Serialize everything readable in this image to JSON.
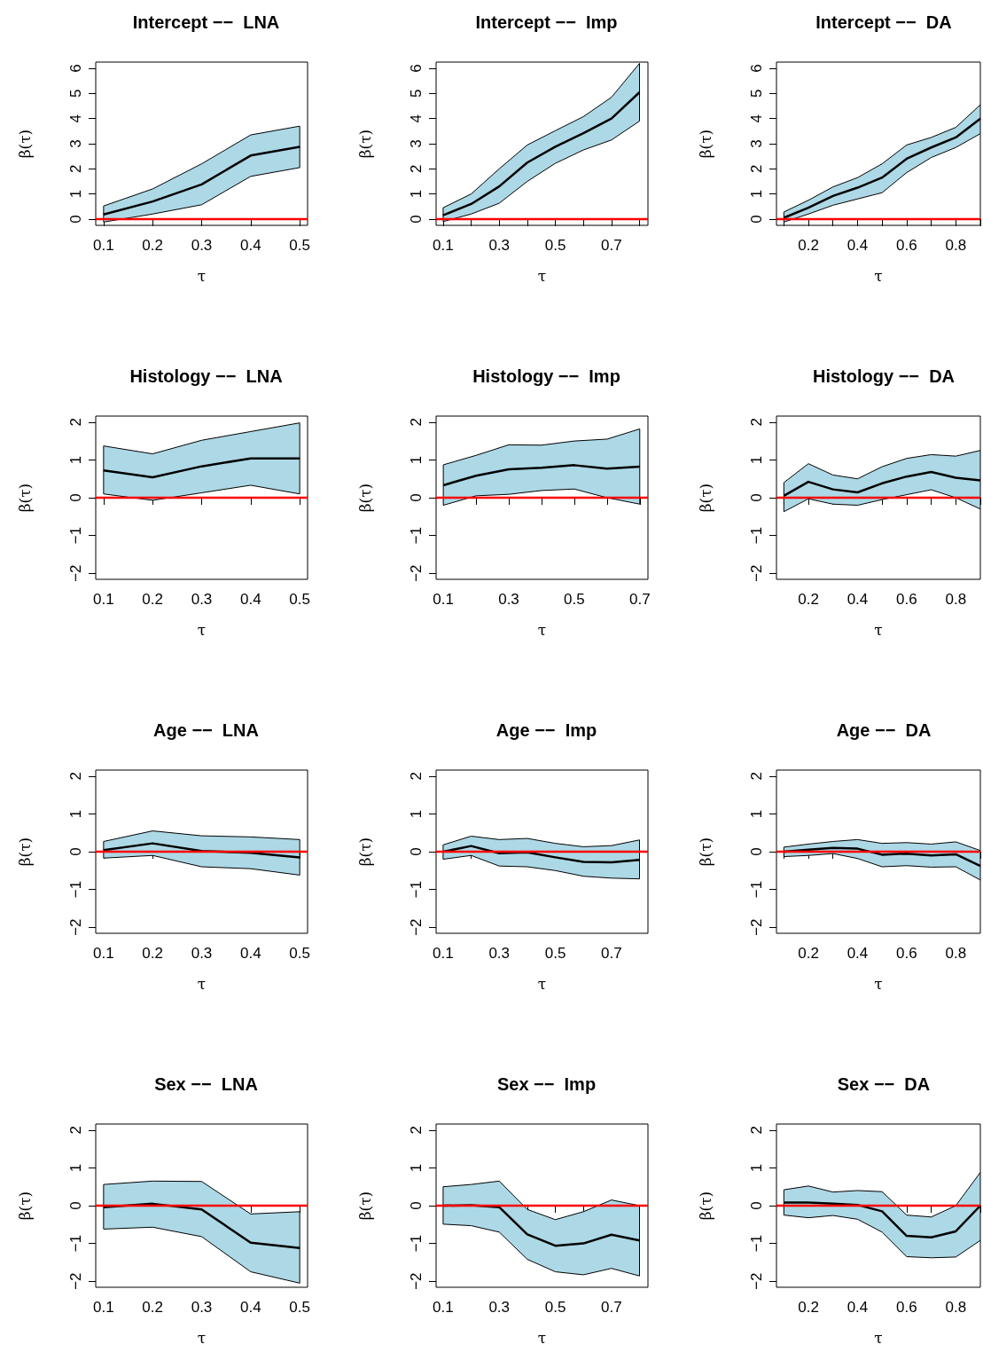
{
  "chart_data": [
    {
      "type": "line",
      "title": "Intercept −−  LNA",
      "xlabel": "τ",
      "ylabel": "β(τ)",
      "x": [
        0.1,
        0.2,
        0.3,
        0.4,
        0.5
      ],
      "xlim": [
        0.084,
        0.516
      ],
      "xticks": [
        0.1,
        0.2,
        0.3,
        0.4,
        0.5
      ],
      "ylim": [
        -0.25,
        6.25
      ],
      "yticks": [
        0,
        1,
        2,
        3,
        4,
        5,
        6
      ],
      "marker": "none",
      "series": [
        {
          "color": "#000000",
          "values": [
            0.18,
            0.7,
            1.38,
            2.53,
            2.88
          ],
          "lower": [
            -0.12,
            0.2,
            0.57,
            1.7,
            2.05
          ],
          "upper": [
            0.52,
            1.2,
            2.2,
            3.35,
            3.7
          ]
        }
      ],
      "ref_lines": [
        {
          "axis": "y",
          "value": 0,
          "color": "#ff0000"
        }
      ]
    },
    {
      "type": "line",
      "title": "Intercept −−  Imp",
      "xlabel": "τ",
      "ylabel": "β(τ)",
      "x": [
        0.1,
        0.2,
        0.3,
        0.4,
        0.5,
        0.6,
        0.7,
        0.8
      ],
      "xlim": [
        0.075,
        0.83
      ],
      "xticks": [
        0.1,
        {
          "value": 0.2,
          "label": null
        },
        0.3,
        {
          "value": 0.4,
          "label": null
        },
        0.5,
        {
          "value": 0.6,
          "label": null
        },
        0.7,
        {
          "value": 0.8,
          "label": null
        }
      ],
      "ylim": [
        -0.25,
        6.25
      ],
      "yticks": [
        0,
        1,
        2,
        3,
        4,
        5,
        6
      ],
      "marker": "none",
      "series": [
        {
          "color": "#000000",
          "values": [
            0.15,
            0.6,
            1.3,
            2.25,
            2.88,
            3.42,
            4.0,
            5.05
          ],
          "lower": [
            -0.1,
            0.2,
            0.63,
            1.5,
            2.22,
            2.75,
            3.15,
            3.9
          ],
          "upper": [
            0.45,
            1.0,
            2.0,
            2.95,
            3.52,
            4.08,
            4.85,
            6.2
          ]
        }
      ],
      "ref_lines": [
        {
          "axis": "y",
          "value": 0,
          "color": "#ff0000"
        }
      ]
    },
    {
      "type": "line",
      "title": "Intercept −−  DA",
      "xlabel": "τ",
      "ylabel": "β(τ)",
      "x": [
        0.1,
        0.2,
        0.3,
        0.4,
        0.5,
        0.6,
        0.7,
        0.8,
        0.9
      ],
      "xlim": [
        0.07,
        0.9
      ],
      "xticks": [
        {
          "value": 0.1,
          "label": null
        },
        0.2,
        {
          "value": 0.3,
          "label": null
        },
        0.4,
        {
          "value": 0.5,
          "label": null
        },
        0.6,
        {
          "value": 0.7,
          "label": null
        },
        0.8,
        {
          "value": 0.9,
          "label": null
        }
      ],
      "ylim": [
        -0.25,
        6.25
      ],
      "yticks": [
        0,
        1,
        2,
        3,
        4,
        5,
        6
      ],
      "marker": "none",
      "series": [
        {
          "color": "#000000",
          "values": [
            0.05,
            0.45,
            0.92,
            1.25,
            1.65,
            2.4,
            2.85,
            3.25,
            4.0
          ],
          "lower": [
            -0.12,
            0.2,
            0.55,
            0.8,
            1.05,
            1.85,
            2.45,
            2.85,
            3.4
          ],
          "upper": [
            0.28,
            0.75,
            1.28,
            1.65,
            2.2,
            2.95,
            3.25,
            3.65,
            4.55
          ]
        }
      ],
      "ref_lines": [
        {
          "axis": "y",
          "value": 0,
          "color": "#ff0000"
        }
      ]
    },
    {
      "type": "line",
      "title": "Histology −−  LNA",
      "xlabel": "τ",
      "ylabel": "β(τ)",
      "x": [
        0.1,
        0.2,
        0.3,
        0.4,
        0.5
      ],
      "xlim": [
        0.084,
        0.516
      ],
      "xticks": [
        0.1,
        0.2,
        0.3,
        0.4,
        0.5
      ],
      "ylim": [
        -2.16,
        2.16
      ],
      "yticks": [
        -2,
        -1,
        0,
        1,
        2
      ],
      "marker": "none",
      "series": [
        {
          "color": "#000000",
          "values": [
            0.72,
            0.54,
            0.83,
            1.04,
            1.04
          ],
          "lower": [
            0.1,
            -0.07,
            0.13,
            0.33,
            0.1
          ],
          "upper": [
            1.37,
            1.16,
            1.52,
            1.75,
            1.98
          ]
        }
      ],
      "ref_lines": [
        {
          "axis": "y",
          "value": 0,
          "color": "#ff0000"
        }
      ]
    },
    {
      "type": "line",
      "title": "Histology −−  Imp",
      "xlabel": "τ",
      "ylabel": "β(τ)",
      "x": [
        0.1,
        0.2,
        0.3,
        0.4,
        0.5,
        0.6,
        0.7
      ],
      "xlim": [
        0.078,
        0.725
      ],
      "xticks": [
        0.1,
        {
          "value": 0.2,
          "label": null
        },
        0.3,
        {
          "value": 0.4,
          "label": null
        },
        0.5,
        {
          "value": 0.6,
          "label": null
        },
        0.7
      ],
      "ylim": [
        -2.16,
        2.16
      ],
      "yticks": [
        -2,
        -1,
        0,
        1,
        2
      ],
      "marker": "none",
      "series": [
        {
          "color": "#000000",
          "values": [
            0.33,
            0.58,
            0.75,
            0.79,
            0.86,
            0.77,
            0.82
          ],
          "lower": [
            -0.2,
            0.05,
            0.09,
            0.19,
            0.23,
            0.0,
            -0.17
          ],
          "upper": [
            0.87,
            1.12,
            1.4,
            1.39,
            1.5,
            1.55,
            1.82
          ]
        }
      ],
      "ref_lines": [
        {
          "axis": "y",
          "value": 0,
          "color": "#ff0000"
        }
      ]
    },
    {
      "type": "line",
      "title": "Histology −−  DA",
      "xlabel": "τ",
      "ylabel": "β(τ)",
      "x": [
        0.1,
        0.2,
        0.3,
        0.4,
        0.5,
        0.6,
        0.7,
        0.8,
        0.9
      ],
      "xlim": [
        0.07,
        0.9
      ],
      "xticks": [
        {
          "value": 0.1,
          "label": null
        },
        0.2,
        {
          "value": 0.3,
          "label": null
        },
        0.4,
        {
          "value": 0.5,
          "label": null
        },
        0.6,
        {
          "value": 0.7,
          "label": null
        },
        0.8,
        {
          "value": 0.9,
          "label": null
        }
      ],
      "ylim": [
        -2.16,
        2.16
      ],
      "yticks": [
        -2,
        -1,
        0,
        1,
        2
      ],
      "marker": "none",
      "series": [
        {
          "color": "#000000",
          "values": [
            0.05,
            0.42,
            0.22,
            0.14,
            0.38,
            0.56,
            0.68,
            0.53,
            0.46
          ],
          "lower": [
            -0.37,
            -0.03,
            -0.17,
            -0.2,
            -0.05,
            0.08,
            0.21,
            0.0,
            -0.3
          ],
          "upper": [
            0.4,
            0.9,
            0.6,
            0.5,
            0.82,
            1.04,
            1.14,
            1.1,
            1.25
          ]
        }
      ],
      "ref_lines": [
        {
          "axis": "y",
          "value": 0,
          "color": "#ff0000"
        }
      ]
    },
    {
      "type": "line",
      "title": "Age −−  LNA",
      "xlabel": "τ",
      "ylabel": "β(τ)",
      "x": [
        0.1,
        0.2,
        0.3,
        0.4,
        0.5
      ],
      "xlim": [
        0.084,
        0.516
      ],
      "xticks": [
        0.1,
        0.2,
        0.3,
        0.4,
        0.5
      ],
      "ylim": [
        -2.16,
        2.16
      ],
      "yticks": [
        -2,
        -1,
        0,
        1,
        2
      ],
      "marker": "none",
      "series": [
        {
          "color": "#000000",
          "values": [
            0.04,
            0.22,
            0.02,
            -0.03,
            -0.15
          ],
          "lower": [
            -0.17,
            -0.1,
            -0.4,
            -0.45,
            -0.62
          ],
          "upper": [
            0.27,
            0.55,
            0.42,
            0.39,
            0.32
          ]
        }
      ],
      "ref_lines": [
        {
          "axis": "y",
          "value": 0,
          "color": "#ff0000"
        }
      ]
    },
    {
      "type": "line",
      "title": "Age −−  Imp",
      "xlabel": "τ",
      "ylabel": "β(τ)",
      "x": [
        0.1,
        0.2,
        0.3,
        0.4,
        0.5,
        0.6,
        0.7,
        0.8
      ],
      "xlim": [
        0.075,
        0.83
      ],
      "xticks": [
        0.1,
        {
          "value": 0.2,
          "label": null
        },
        0.3,
        {
          "value": 0.4,
          "label": null
        },
        0.5,
        {
          "value": 0.6,
          "label": null
        },
        0.7,
        {
          "value": 0.8,
          "label": null
        }
      ],
      "ylim": [
        -2.16,
        2.16
      ],
      "yticks": [
        -2,
        -1,
        0,
        1,
        2
      ],
      "marker": "none",
      "series": [
        {
          "color": "#000000",
          "values": [
            0.0,
            0.15,
            -0.04,
            -0.02,
            -0.15,
            -0.27,
            -0.28,
            -0.22
          ],
          "lower": [
            -0.2,
            -0.1,
            -0.38,
            -0.4,
            -0.5,
            -0.65,
            -0.7,
            -0.72
          ],
          "upper": [
            0.18,
            0.41,
            0.32,
            0.35,
            0.22,
            0.13,
            0.16,
            0.31
          ]
        }
      ],
      "ref_lines": [
        {
          "axis": "y",
          "value": 0,
          "color": "#ff0000"
        }
      ]
    },
    {
      "type": "line",
      "title": "Age −−  DA",
      "xlabel": "τ",
      "ylabel": "β(τ)",
      "x": [
        0.1,
        0.2,
        0.3,
        0.4,
        0.5,
        0.6,
        0.7,
        0.8,
        0.9
      ],
      "xlim": [
        0.07,
        0.9
      ],
      "xticks": [
        {
          "value": 0.1,
          "label": null
        },
        0.2,
        {
          "value": 0.3,
          "label": null
        },
        0.4,
        {
          "value": 0.5,
          "label": null
        },
        0.6,
        {
          "value": 0.7,
          "label": null
        },
        0.8,
        {
          "value": 0.9,
          "label": null
        }
      ],
      "ylim": [
        -2.16,
        2.16
      ],
      "yticks": [
        -2,
        -1,
        0,
        1,
        2
      ],
      "marker": "none",
      "series": [
        {
          "color": "#000000",
          "values": [
            0.0,
            0.05,
            0.1,
            0.08,
            -0.08,
            -0.05,
            -0.1,
            -0.07,
            -0.38
          ],
          "lower": [
            -0.13,
            -0.1,
            -0.05,
            -0.18,
            -0.4,
            -0.37,
            -0.41,
            -0.4,
            -0.75
          ],
          "upper": [
            0.12,
            0.2,
            0.27,
            0.32,
            0.22,
            0.24,
            0.2,
            0.26,
            0.03
          ]
        }
      ],
      "ref_lines": [
        {
          "axis": "y",
          "value": 0,
          "color": "#ff0000"
        }
      ]
    },
    {
      "type": "line",
      "title": "Sex −−  LNA",
      "xlabel": "τ",
      "ylabel": "β(τ)",
      "x": [
        0.1,
        0.2,
        0.3,
        0.4,
        0.5
      ],
      "xlim": [
        0.084,
        0.516
      ],
      "xticks": [
        0.1,
        0.2,
        0.3,
        0.4,
        0.5
      ],
      "ylim": [
        -2.16,
        2.16
      ],
      "yticks": [
        -2,
        -1,
        0,
        1,
        2
      ],
      "marker": "none",
      "series": [
        {
          "color": "#000000",
          "values": [
            -0.04,
            0.05,
            -0.1,
            -0.98,
            -1.12
          ],
          "lower": [
            -0.62,
            -0.57,
            -0.82,
            -1.75,
            -2.05
          ],
          "upper": [
            0.56,
            0.65,
            0.64,
            -0.22,
            -0.16
          ]
        }
      ],
      "ref_lines": [
        {
          "axis": "y",
          "value": 0,
          "color": "#ff0000"
        }
      ]
    },
    {
      "type": "line",
      "title": "Sex −−  Imp",
      "xlabel": "τ",
      "ylabel": "β(τ)",
      "x": [
        0.1,
        0.2,
        0.3,
        0.4,
        0.5,
        0.6,
        0.7,
        0.8
      ],
      "xlim": [
        0.075,
        0.83
      ],
      "xticks": [
        0.1,
        {
          "value": 0.2,
          "label": null
        },
        0.3,
        {
          "value": 0.4,
          "label": null
        },
        0.5,
        {
          "value": 0.6,
          "label": null
        },
        0.7,
        {
          "value": 0.8,
          "label": null
        }
      ],
      "ylim": [
        -2.16,
        2.16
      ],
      "yticks": [
        -2,
        -1,
        0,
        1,
        2
      ],
      "marker": "none",
      "series": [
        {
          "color": "#000000",
          "values": [
            0.0,
            0.01,
            -0.04,
            -0.76,
            -1.06,
            -1.0,
            -0.77,
            -0.92
          ],
          "lower": [
            -0.49,
            -0.53,
            -0.7,
            -1.42,
            -1.75,
            -1.83,
            -1.66,
            -1.86
          ],
          "upper": [
            0.5,
            0.56,
            0.65,
            -0.1,
            -0.37,
            -0.16,
            0.15,
            0.0
          ]
        }
      ],
      "ref_lines": [
        {
          "axis": "y",
          "value": 0,
          "color": "#ff0000"
        }
      ]
    },
    {
      "type": "line",
      "title": "Sex −−  DA",
      "xlabel": "τ",
      "ylabel": "β(τ)",
      "x": [
        0.1,
        0.2,
        0.3,
        0.4,
        0.5,
        0.6,
        0.7,
        0.8,
        0.9
      ],
      "xlim": [
        0.07,
        0.9
      ],
      "xticks": [
        {
          "value": 0.1,
          "label": null
        },
        0.2,
        {
          "value": 0.3,
          "label": null
        },
        0.4,
        {
          "value": 0.5,
          "label": null
        },
        0.6,
        {
          "value": 0.7,
          "label": null
        },
        0.8,
        {
          "value": 0.9,
          "label": null
        }
      ],
      "ylim": [
        -2.16,
        2.16
      ],
      "yticks": [
        -2,
        -1,
        0,
        1,
        2
      ],
      "marker": "none",
      "series": [
        {
          "color": "#000000",
          "values": [
            0.08,
            0.08,
            0.05,
            0.02,
            -0.15,
            -0.8,
            -0.84,
            -0.68,
            0.0
          ],
          "lower": [
            -0.25,
            -0.32,
            -0.26,
            -0.36,
            -0.7,
            -1.35,
            -1.38,
            -1.36,
            -0.92
          ],
          "upper": [
            0.42,
            0.52,
            0.36,
            0.4,
            0.37,
            -0.25,
            -0.3,
            0.0,
            0.88
          ]
        }
      ],
      "ref_lines": [
        {
          "axis": "y",
          "value": 0,
          "color": "#ff0000"
        }
      ]
    }
  ]
}
